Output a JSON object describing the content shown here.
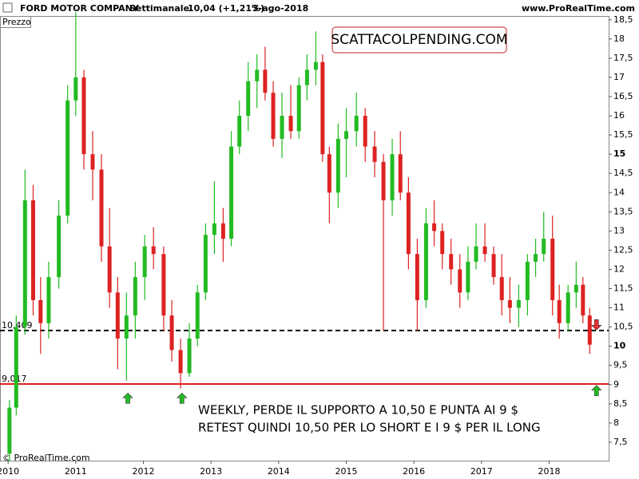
{
  "chart_data": {
    "type": "candlestick",
    "title": "FORD MOTOR COMPANY",
    "period": "Settimanale",
    "last_quote": "10,04 (+1,21%)",
    "date": "3-ago-2018",
    "site": "www.ProRealTime.com",
    "panel_label": "Prezzo",
    "copyright": "© ProRealTime.com",
    "annotation_box": "SCATTACOLPENDING.COM",
    "annotation_lines": [
      "WEEKLY, PERDE IL SUPPORTO A 10,50 E PUNTA AI 9 $",
      "RETEST QUINDI 10,50 PER LO SHORT E  I 9 $ PER IL LONG"
    ],
    "up_color": "#22bb22",
    "down_color": "#dd2222",
    "x": [
      2010.02,
      2010.12,
      2010.25,
      2010.37,
      2010.48,
      2010.6,
      2010.75,
      2010.88,
      2011.0,
      2011.12,
      2011.25,
      2011.38,
      2011.5,
      2011.62,
      2011.75,
      2011.88,
      2012.02,
      2012.15,
      2012.3,
      2012.42,
      2012.55,
      2012.68,
      2012.8,
      2012.92,
      2013.05,
      2013.18,
      2013.3,
      2013.42,
      2013.55,
      2013.68,
      2013.8,
      2013.92,
      2014.05,
      2014.18,
      2014.3,
      2014.42,
      2014.55,
      2014.65,
      2014.75,
      2014.88,
      2015.0,
      2015.15,
      2015.28,
      2015.42,
      2015.55,
      2015.68,
      2015.8,
      2015.92,
      2016.05,
      2016.18,
      2016.3,
      2016.42,
      2016.55,
      2016.68,
      2016.8,
      2016.92,
      2017.05,
      2017.18,
      2017.3,
      2017.42,
      2017.55,
      2017.68,
      2017.8,
      2017.92,
      2018.05,
      2018.15,
      2018.28,
      2018.4,
      2018.5,
      2018.6
    ],
    "open": [
      7.2,
      8.4,
      10.5,
      13.8,
      11.2,
      10.6,
      11.8,
      13.4,
      16.4,
      17.0,
      15.0,
      14.6,
      12.6,
      11.4,
      10.2,
      10.8,
      11.8,
      12.6,
      12.4,
      10.8,
      9.9,
      9.3,
      10.2,
      11.4,
      12.9,
      13.2,
      12.8,
      15.2,
      16.0,
      16.9,
      17.2,
      16.6,
      15.4,
      16.0,
      15.6,
      16.8,
      17.2,
      17.4,
      15.0,
      14.0,
      15.4,
      15.6,
      16.0,
      15.2,
      14.8,
      13.8,
      15.0,
      14.0,
      12.4,
      11.2,
      13.2,
      13.0,
      12.4,
      12.0,
      11.4,
      12.2,
      12.6,
      12.4,
      11.8,
      11.2,
      11.0,
      11.2,
      12.2,
      12.4,
      12.8,
      11.2,
      10.6,
      11.4,
      11.6,
      10.8
    ],
    "high": [
      8.6,
      10.8,
      14.6,
      14.2,
      11.8,
      12.2,
      13.8,
      16.8,
      18.7,
      17.2,
      15.6,
      15.0,
      13.6,
      11.8,
      11.4,
      12.2,
      12.9,
      13.1,
      12.6,
      11.2,
      10.2,
      10.6,
      11.6,
      13.2,
      14.3,
      13.6,
      15.6,
      16.4,
      17.4,
      17.6,
      17.8,
      16.9,
      16.6,
      16.8,
      17.0,
      17.6,
      18.2,
      17.6,
      15.2,
      15.8,
      16.2,
      16.6,
      16.2,
      15.6,
      15.0,
      15.4,
      15.6,
      14.4,
      12.8,
      13.6,
      13.8,
      13.2,
      12.8,
      12.4,
      12.6,
      13.2,
      13.2,
      12.6,
      12.4,
      11.8,
      11.6,
      12.4,
      12.8,
      13.5,
      13.4,
      11.6,
      11.6,
      12.2,
      11.8,
      11.0
    ],
    "low": [
      7.0,
      8.2,
      10.3,
      10.8,
      9.8,
      10.2,
      11.5,
      13.2,
      16.0,
      14.6,
      13.8,
      12.2,
      11.0,
      9.4,
      9.1,
      10.2,
      11.2,
      12.0,
      10.4,
      9.6,
      8.9,
      9.2,
      10.0,
      11.2,
      12.4,
      12.2,
      12.6,
      15.0,
      15.6,
      16.2,
      16.4,
      15.2,
      14.9,
      15.4,
      15.4,
      16.4,
      16.8,
      14.8,
      13.2,
      13.6,
      14.4,
      15.2,
      14.8,
      14.4,
      10.4,
      13.4,
      13.8,
      12.0,
      10.4,
      11.0,
      12.6,
      12.0,
      11.6,
      11.0,
      11.2,
      12.0,
      12.2,
      11.6,
      10.8,
      10.6,
      10.5,
      10.8,
      11.8,
      12.2,
      10.8,
      10.2,
      10.4,
      11.0,
      10.6,
      9.8
    ],
    "close": [
      8.4,
      10.5,
      13.8,
      11.2,
      10.6,
      11.8,
      13.4,
      16.4,
      17.0,
      15.0,
      14.6,
      12.6,
      11.4,
      10.2,
      10.8,
      11.8,
      12.6,
      12.4,
      10.8,
      9.9,
      9.3,
      10.2,
      11.4,
      12.9,
      13.2,
      12.8,
      15.2,
      16.0,
      16.9,
      17.2,
      16.6,
      15.4,
      16.0,
      15.6,
      16.8,
      17.2,
      17.4,
      15.0,
      14.0,
      15.4,
      15.6,
      16.0,
      15.2,
      14.8,
      13.8,
      15.0,
      14.0,
      12.4,
      11.2,
      13.2,
      13.0,
      12.4,
      12.0,
      11.4,
      12.2,
      12.6,
      12.4,
      11.8,
      11.2,
      11.0,
      11.2,
      12.2,
      12.4,
      12.8,
      11.2,
      10.6,
      11.4,
      11.6,
      10.8,
      10.04
    ],
    "levels": [
      {
        "value": 10.409,
        "label": "10,409",
        "color": "#000000",
        "style": "dashed"
      },
      {
        "value": 9.017,
        "label": "9,017",
        "color": "#e02020",
        "style": "solid"
      }
    ],
    "arrows": [
      {
        "x": 2011.77,
        "y": 8.8,
        "direction": "up",
        "color": "#22bb22"
      },
      {
        "x": 2012.57,
        "y": 8.8,
        "direction": "up",
        "color": "#22bb22"
      },
      {
        "x": 2018.7,
        "y": 9.0,
        "direction": "up",
        "color": "#22bb22"
      },
      {
        "x": 2018.7,
        "y": 10.4,
        "direction": "down",
        "color": "#e03030"
      }
    ],
    "xlim": [
      2009.88,
      2018.88
    ],
    "xticks": [
      2010,
      2011,
      2012,
      2013,
      2014,
      2015,
      2016,
      2017,
      2018
    ],
    "ylim": [
      7.02,
      18.6
    ],
    "yticks": [
      {
        "value": 7.5,
        "label": "7,5"
      },
      8,
      {
        "value": 8.5,
        "label": "8,5"
      },
      9,
      {
        "value": 9.5,
        "label": "9,5"
      },
      10,
      {
        "value": 10.5,
        "label": "10,5"
      },
      11,
      {
        "value": 11.5,
        "label": "11,5"
      },
      12,
      {
        "value": 12.5,
        "label": "12,5"
      },
      13,
      {
        "value": 13.5,
        "label": "13,5"
      },
      14,
      {
        "value": 14.5,
        "label": "14,5"
      },
      15,
      {
        "value": 15.5,
        "label": "15,5"
      },
      16,
      {
        "value": 16.5,
        "label": "16,5"
      },
      17,
      {
        "value": 17.5,
        "label": "17,5"
      },
      18,
      {
        "value": 18.5,
        "label": "18,5"
      }
    ],
    "bold_yticks": [
      10,
      15
    ]
  }
}
